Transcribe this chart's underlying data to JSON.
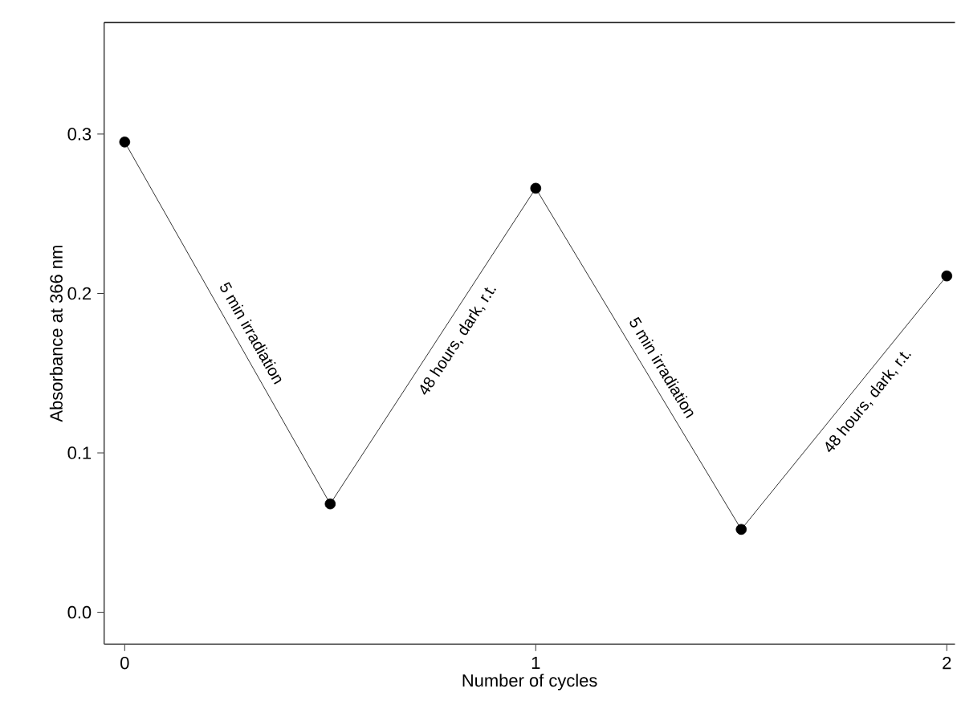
{
  "chart_data": {
    "type": "line",
    "xlabel": "Number of cycles",
    "ylabel": "Absorbance at 366 nm",
    "x": [
      0,
      0.5,
      1,
      1.5,
      2
    ],
    "series": [
      {
        "color": "#000000",
        "values": [
          0.295,
          0.068,
          0.266,
          0.052,
          0.211
        ]
      }
    ],
    "xlim": [
      -0.05,
      2.02
    ],
    "ylim": [
      -0.02,
      0.37
    ],
    "xticks": [
      0,
      1,
      2
    ],
    "yticks": [
      {
        "value": 0,
        "label": "0.0"
      },
      {
        "value": 0.1,
        "label": "0.1"
      },
      {
        "value": 0.2,
        "label": "0.2"
      },
      {
        "value": 0.3,
        "label": "0.3"
      }
    ],
    "marker": "circle",
    "line_style": "solid",
    "annotations": [
      "5 min irradiation",
      "48 hours, dark, r.t.",
      "5 min irradiation",
      "48 hours, dark, r.t."
    ]
  }
}
